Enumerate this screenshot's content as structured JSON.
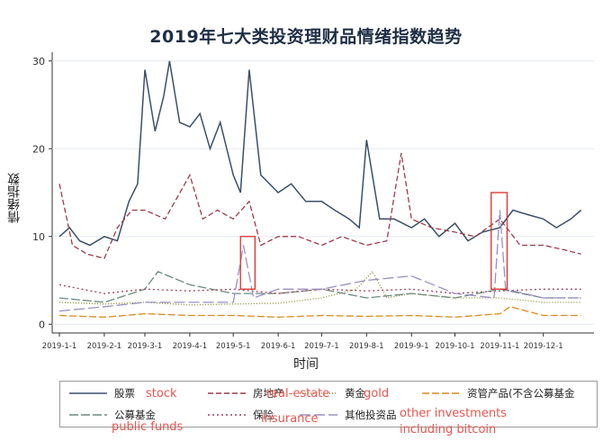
{
  "chart_data": {
    "type": "line",
    "title": "2019年七大类投资理财品情绪指数趋势",
    "xlabel": "时间",
    "ylabel": "情绪指数",
    "ylim": [
      -1,
      31
    ],
    "yticks": [
      0,
      10,
      20,
      30
    ],
    "x_ticks": [
      "2019-1-1",
      "2019-2-1",
      "2019-3-1",
      "2019-4-1",
      "2019-5-1",
      "2019-6-1",
      "2019-7-1",
      "2019-8-1",
      "2019-9-1",
      "2019-10-1",
      "2019-11-1",
      "2019-12-1"
    ],
    "x_range": [
      "2019-01-01",
      "2019-12-31"
    ],
    "grid": true,
    "legend_position": "bottom",
    "series": [
      {
        "name": "股票",
        "color": "#3a5068",
        "dash": "none",
        "x": [
          "2019-01-01",
          "2019-01-08",
          "2019-01-15",
          "2019-01-22",
          "2019-02-01",
          "2019-02-10",
          "2019-02-18",
          "2019-02-24",
          "2019-03-01",
          "2019-03-08",
          "2019-03-14",
          "2019-03-18",
          "2019-03-25",
          "2019-04-01",
          "2019-04-08",
          "2019-04-15",
          "2019-04-22",
          "2019-05-01",
          "2019-05-06",
          "2019-05-12",
          "2019-05-20",
          "2019-06-01",
          "2019-06-10",
          "2019-06-20",
          "2019-07-01",
          "2019-07-10",
          "2019-07-20",
          "2019-07-27",
          "2019-08-01",
          "2019-08-10",
          "2019-08-20",
          "2019-09-01",
          "2019-09-10",
          "2019-09-20",
          "2019-10-01",
          "2019-10-10",
          "2019-10-20",
          "2019-11-01",
          "2019-11-10",
          "2019-11-20",
          "2019-12-01",
          "2019-12-10",
          "2019-12-20",
          "2019-12-27"
        ],
        "values": [
          10,
          11,
          9.5,
          9,
          10,
          9.5,
          14,
          16,
          29,
          22,
          26,
          30,
          23,
          22.5,
          24,
          20,
          23,
          17,
          15,
          29,
          17,
          15,
          16,
          14,
          14,
          13,
          12,
          11,
          21,
          12,
          12,
          11,
          12,
          10,
          11.5,
          9.5,
          10.5,
          11,
          13,
          12.5,
          12,
          11,
          12,
          13
        ]
      },
      {
        "name": "房地产",
        "color": "#9b3c4a",
        "dash": "6,3",
        "x": [
          "2019-01-01",
          "2019-01-10",
          "2019-01-20",
          "2019-02-01",
          "2019-02-10",
          "2019-02-20",
          "2019-03-01",
          "2019-03-15",
          "2019-04-01",
          "2019-04-10",
          "2019-04-20",
          "2019-05-01",
          "2019-05-12",
          "2019-05-20",
          "2019-06-01",
          "2019-06-15",
          "2019-07-01",
          "2019-07-15",
          "2019-08-01",
          "2019-08-15",
          "2019-08-25",
          "2019-09-01",
          "2019-09-15",
          "2019-10-01",
          "2019-10-15",
          "2019-11-01",
          "2019-11-15",
          "2019-12-01",
          "2019-12-15",
          "2019-12-27"
        ],
        "values": [
          16,
          9,
          8,
          7.5,
          11,
          13,
          13,
          12,
          17,
          12,
          13,
          12,
          14,
          9,
          10,
          10,
          9,
          10,
          9,
          9.5,
          19.5,
          12,
          11,
          10.5,
          10,
          12,
          9,
          9,
          8.5,
          8
        ]
      },
      {
        "name": "黄金",
        "color": "#8b8a2e",
        "dash": "1,2",
        "x": [
          "2019-01-01",
          "2019-02-01",
          "2019-03-01",
          "2019-04-01",
          "2019-05-01",
          "2019-06-01",
          "2019-07-01",
          "2019-07-25",
          "2019-08-05",
          "2019-08-15",
          "2019-09-01",
          "2019-10-01",
          "2019-11-01",
          "2019-12-01",
          "2019-12-27"
        ],
        "values": [
          2.5,
          2.3,
          2.5,
          2.2,
          2.3,
          2.4,
          3,
          4,
          6,
          3,
          3.5,
          3,
          3,
          2.5,
          2.5
        ]
      },
      {
        "name": "资管产品(不含公募基金",
        "color": "#d98c1e",
        "dash": "8,3",
        "x": [
          "2019-01-01",
          "2019-02-01",
          "2019-03-01",
          "2019-04-01",
          "2019-05-01",
          "2019-06-01",
          "2019-07-01",
          "2019-08-01",
          "2019-09-01",
          "2019-10-01",
          "2019-11-01",
          "2019-11-08",
          "2019-12-01",
          "2019-12-27"
        ],
        "values": [
          1,
          0.8,
          1.2,
          1,
          1,
          0.8,
          1,
          0.9,
          1,
          0.8,
          1.2,
          2,
          1,
          1
        ]
      },
      {
        "name": "公募基金",
        "color": "#6e8a7c",
        "dash": "10,3",
        "x": [
          "2019-01-01",
          "2019-02-01",
          "2019-03-01",
          "2019-03-10",
          "2019-04-01",
          "2019-05-01",
          "2019-06-01",
          "2019-07-01",
          "2019-08-01",
          "2019-09-01",
          "2019-10-01",
          "2019-11-01",
          "2019-12-01",
          "2019-12-27"
        ],
        "values": [
          3,
          2.5,
          4,
          6,
          4.5,
          3.5,
          3.5,
          4,
          3,
          3.5,
          3,
          4,
          3,
          3
        ]
      },
      {
        "name": "保险",
        "color": "#a0405a",
        "dash": "2,3",
        "x": [
          "2019-01-01",
          "2019-02-01",
          "2019-03-01",
          "2019-04-01",
          "2019-05-01",
          "2019-06-01",
          "2019-07-01",
          "2019-08-01",
          "2019-09-01",
          "2019-10-01",
          "2019-11-01",
          "2019-12-01",
          "2019-12-27"
        ],
        "values": [
          4.5,
          3.5,
          4,
          3.8,
          4,
          3.5,
          4,
          3.8,
          4,
          3.5,
          3.8,
          4,
          4
        ]
      },
      {
        "name": "其他投资品",
        "color": "#9a90c4",
        "dash": "12,4",
        "x": [
          "2019-01-01",
          "2019-02-01",
          "2019-03-01",
          "2019-04-01",
          "2019-05-01",
          "2019-05-08",
          "2019-05-15",
          "2019-06-01",
          "2019-07-01",
          "2019-08-01",
          "2019-09-01",
          "2019-10-01",
          "2019-10-28",
          "2019-11-01",
          "2019-11-05",
          "2019-12-01",
          "2019-12-27"
        ],
        "values": [
          1.5,
          2,
          2.5,
          2.5,
          2.5,
          9,
          3,
          4,
          4,
          5,
          5.5,
          3.5,
          3,
          13,
          4,
          3,
          3
        ]
      }
    ],
    "highlight_boxes": [
      {
        "x": [
          "2019-05-06",
          "2019-05-16"
        ],
        "y": [
          4,
          10
        ]
      },
      {
        "x": [
          "2019-10-26",
          "2019-11-06"
        ],
        "y": [
          4,
          15
        ]
      }
    ]
  },
  "legend": {
    "items": [
      {
        "label": "股票",
        "note": "stock",
        "color": "#3a5068",
        "dash": "none"
      },
      {
        "label": "房地产",
        "note": "real-estate",
        "color": "#9b3c4a",
        "dash": "6,3"
      },
      {
        "label": "黄金",
        "note": "gold",
        "color": "#8b8a2e",
        "dash": "1,2"
      },
      {
        "label": "资管产品(不含公募基金",
        "note": "",
        "color": "#d98c1e",
        "dash": "8,3"
      },
      {
        "label": "公募基金",
        "note": "",
        "color": "#6e8a7c",
        "dash": "10,3"
      },
      {
        "label": "保险",
        "note": "insurance",
        "color": "#a0405a",
        "dash": "2,3"
      },
      {
        "label": "其他投资品",
        "note": "",
        "color": "#9a90c4",
        "dash": "12,4"
      }
    ],
    "extra_notes": {
      "public_funds": "public funds",
      "other_investments": "other investments",
      "including_bitcoin": "including bitcoin"
    }
  },
  "annotation_color": "#e6564f"
}
